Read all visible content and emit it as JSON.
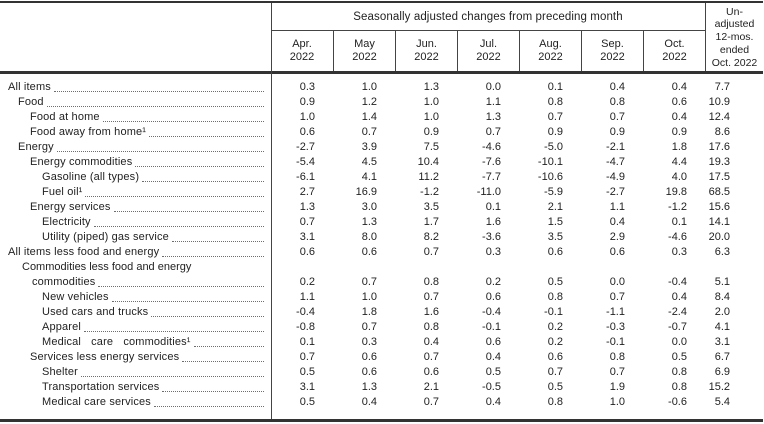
{
  "table": {
    "header": {
      "seasonal_title": "Seasonally adjusted changes from preceding month",
      "months": [
        "Apr.\n2022",
        "May\n2022",
        "Jun.\n2022",
        "Jul.\n2022",
        "Aug.\n2022",
        "Sep.\n2022",
        "Oct.\n2022"
      ],
      "unadjusted": "Un-\nadjusted\n12-mos.\nended\nOct. 2022"
    },
    "rows": [
      {
        "label": "All items",
        "level": 0,
        "values": [
          "0.3",
          "1.0",
          "1.3",
          "0.0",
          "0.1",
          "0.4",
          "0.4",
          "7.7"
        ]
      },
      {
        "label": "Food",
        "level": 1,
        "values": [
          "0.9",
          "1.2",
          "1.0",
          "1.1",
          "0.8",
          "0.8",
          "0.6",
          "10.9"
        ]
      },
      {
        "label": "Food at home",
        "level": 2,
        "values": [
          "1.0",
          "1.4",
          "1.0",
          "1.3",
          "0.7",
          "0.7",
          "0.4",
          "12.4"
        ]
      },
      {
        "label": "Food away from home¹",
        "level": 2,
        "values": [
          "0.6",
          "0.7",
          "0.9",
          "0.7",
          "0.9",
          "0.9",
          "0.9",
          "8.6"
        ]
      },
      {
        "label": "Energy",
        "level": 1,
        "values": [
          "-2.7",
          "3.9",
          "7.5",
          "-4.6",
          "-5.0",
          "-2.1",
          "1.8",
          "17.6"
        ]
      },
      {
        "label": "Energy commodities",
        "level": 2,
        "values": [
          "-5.4",
          "4.5",
          "10.4",
          "-7.6",
          "-10.1",
          "-4.7",
          "4.4",
          "19.3"
        ]
      },
      {
        "label": "Gasoline (all types)",
        "level": 3,
        "values": [
          "-6.1",
          "4.1",
          "11.2",
          "-7.7",
          "-10.6",
          "-4.9",
          "4.0",
          "17.5"
        ]
      },
      {
        "label": "Fuel oil¹",
        "level": 3,
        "values": [
          "2.7",
          "16.9",
          "-1.2",
          "-11.0",
          "-5.9",
          "-2.7",
          "19.8",
          "68.5"
        ]
      },
      {
        "label": "Energy services",
        "level": 2,
        "values": [
          "1.3",
          "3.0",
          "3.5",
          "0.1",
          "2.1",
          "1.1",
          "-1.2",
          "15.6"
        ]
      },
      {
        "label": "Electricity",
        "level": 3,
        "values": [
          "0.7",
          "1.3",
          "1.7",
          "1.6",
          "1.5",
          "0.4",
          "0.1",
          "14.1"
        ]
      },
      {
        "label": "Utility (piped) gas service",
        "level": 3,
        "values": [
          "3.1",
          "8.0",
          "8.2",
          "-3.6",
          "3.5",
          "2.9",
          "-4.6",
          "20.0"
        ]
      },
      {
        "label": "All items less food and energy",
        "level": 0,
        "values": [
          "0.6",
          "0.6",
          "0.7",
          "0.3",
          "0.6",
          "0.6",
          "0.3",
          "6.3"
        ]
      },
      {
        "label_line1": "Commodities less food and energy",
        "label": "commodities",
        "level": 2,
        "values": [
          "0.2",
          "0.7",
          "0.8",
          "0.2",
          "0.5",
          "0.0",
          "-0.4",
          "5.1"
        ]
      },
      {
        "label": "New vehicles",
        "level": 3,
        "values": [
          "1.1",
          "1.0",
          "0.7",
          "0.6",
          "0.8",
          "0.7",
          "0.4",
          "8.4"
        ]
      },
      {
        "label": "Used cars and trucks",
        "level": 3,
        "values": [
          "-0.4",
          "1.8",
          "1.6",
          "-0.4",
          "-0.1",
          "-1.1",
          "-2.4",
          "2.0"
        ]
      },
      {
        "label": "Apparel",
        "level": 3,
        "values": [
          "-0.8",
          "0.7",
          "0.8",
          "-0.1",
          "0.2",
          "-0.3",
          "-0.7",
          "4.1"
        ]
      },
      {
        "label": "Medical care commodities¹",
        "level": 3,
        "wide": true,
        "values": [
          "0.1",
          "0.3",
          "0.4",
          "0.6",
          "0.2",
          "-0.1",
          "0.0",
          "3.1"
        ]
      },
      {
        "label": "Services less energy services",
        "level": 2,
        "values": [
          "0.7",
          "0.6",
          "0.7",
          "0.4",
          "0.6",
          "0.8",
          "0.5",
          "6.7"
        ]
      },
      {
        "label": "Shelter",
        "level": 3,
        "values": [
          "0.5",
          "0.6",
          "0.6",
          "0.5",
          "0.7",
          "0.7",
          "0.8",
          "6.9"
        ]
      },
      {
        "label": "Transportation services",
        "level": 3,
        "values": [
          "3.1",
          "1.3",
          "2.1",
          "-0.5",
          "0.5",
          "1.9",
          "0.8",
          "15.2"
        ]
      },
      {
        "label": "Medical care services",
        "level": 3,
        "values": [
          "0.5",
          "0.4",
          "0.7",
          "0.4",
          "0.8",
          "1.0",
          "-0.6",
          "5.4"
        ]
      }
    ]
  }
}
